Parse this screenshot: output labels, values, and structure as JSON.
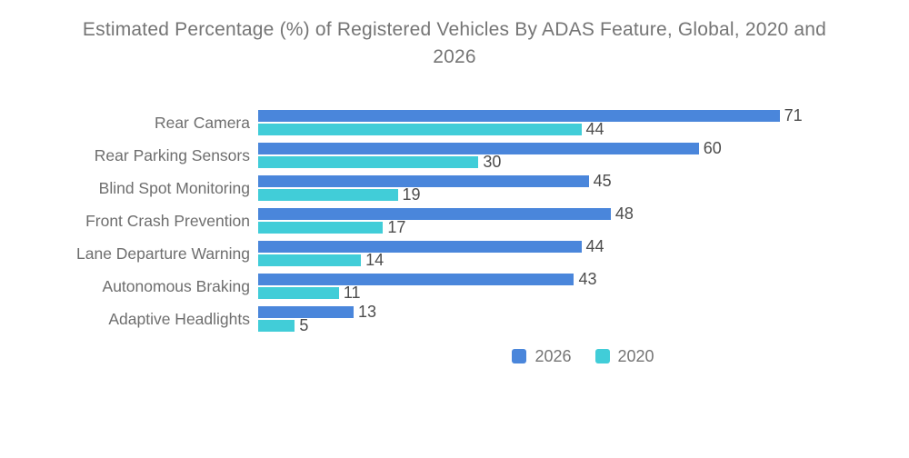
{
  "title": "Estimated Percentage (%) of Registered Vehicles By ADAS Feature, Global, 2020 and 2026",
  "colors": {
    "series_2026": "#4A86DB",
    "series_2020": "#41CDD8",
    "title_text": "#757575",
    "category_text": "#6E6E6E",
    "value_text": "#4D4D4D",
    "background": "#FFFFFF"
  },
  "legend": {
    "position": "bottom",
    "items": [
      {
        "label": "2026",
        "color": "#4A86DB"
      },
      {
        "label": "2020",
        "color": "#41CDD8"
      }
    ]
  },
  "chart_data": {
    "type": "bar",
    "orientation": "horizontal",
    "title": "Estimated Percentage (%) of Registered Vehicles By ADAS Feature, Global, 2020 and 2026",
    "categories": [
      "Rear Camera",
      "Rear Parking Sensors",
      "Blind Spot Monitoring",
      "Front Crash Prevention",
      "Lane Departure Warning",
      "Autonomous Braking",
      "Adaptive Headlights"
    ],
    "series": [
      {
        "name": "2026",
        "color": "#4A86DB",
        "values": [
          71,
          60,
          45,
          48,
          44,
          43,
          13
        ]
      },
      {
        "name": "2020",
        "color": "#41CDD8",
        "values": [
          44,
          30,
          19,
          17,
          14,
          11,
          5
        ]
      }
    ],
    "value_labels": true,
    "axes_visible": false,
    "grid": false,
    "xlim": [
      0,
      88
    ],
    "legend_position": "bottom"
  }
}
